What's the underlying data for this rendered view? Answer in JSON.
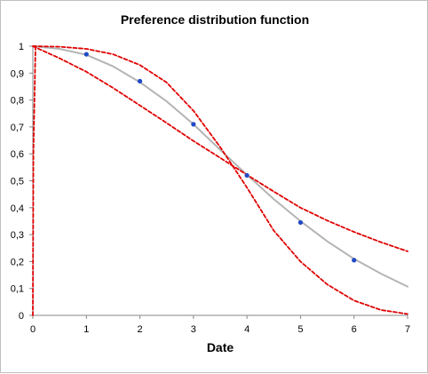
{
  "chart_data": {
    "type": "line",
    "title": "Preference distribution function",
    "xlabel": "Date",
    "ylabel": "",
    "xlim": [
      0,
      7
    ],
    "ylim": [
      0,
      1
    ],
    "x_ticks": [
      "0",
      "1",
      "2",
      "3",
      "4",
      "5",
      "6",
      "7"
    ],
    "y_ticks": [
      "0",
      "0,1",
      "0,2",
      "0,3",
      "0,4",
      "0,5",
      "0,6",
      "0,7",
      "0,8",
      "0,9",
      "1"
    ],
    "grid": false,
    "legend": "none",
    "series": [
      {
        "style": "scatter",
        "color": "#1f49c8",
        "x": [
          1,
          2,
          3,
          4,
          5,
          6
        ],
        "y": [
          0.97,
          0.87,
          0.71,
          0.52,
          0.345,
          0.205
        ]
      },
      {
        "style": "solid",
        "color": "#b4b4b4",
        "x": [
          0,
          0.5,
          1,
          1.5,
          2,
          2.5,
          3,
          3.5,
          4,
          4.5,
          5,
          5.5,
          6,
          6.5,
          7
        ],
        "y": [
          1.0,
          0.99,
          0.968,
          0.925,
          0.866,
          0.795,
          0.71,
          0.615,
          0.522,
          0.432,
          0.35,
          0.275,
          0.21,
          0.155,
          0.107
        ]
      },
      {
        "style": "dashed",
        "color": "#e00000",
        "x": [
          0,
          0.5,
          1,
          1.5,
          2,
          2.5,
          3,
          3.5,
          4,
          4.5,
          5,
          5.5,
          6,
          6.5,
          7
        ],
        "y": [
          1.0,
          0.955,
          0.905,
          0.845,
          0.78,
          0.715,
          0.648,
          0.585,
          0.522,
          0.46,
          0.4,
          0.352,
          0.31,
          0.272,
          0.238
        ]
      },
      {
        "style": "dashed",
        "color": "#e00000",
        "x": [
          0,
          0.5,
          1,
          1.5,
          2,
          2.5,
          3,
          3.5,
          4,
          4.5,
          5,
          5.5,
          6,
          6.5,
          7
        ],
        "y": [
          1.0,
          0.998,
          0.99,
          0.97,
          0.93,
          0.865,
          0.76,
          0.625,
          0.475,
          0.315,
          0.2,
          0.115,
          0.055,
          0.02,
          0.005
        ]
      },
      {
        "style": "dashed",
        "color": "#e00000",
        "x": [
          0,
          0.01,
          0.05
        ],
        "y": [
          0,
          0.6,
          1.0
        ]
      }
    ]
  }
}
